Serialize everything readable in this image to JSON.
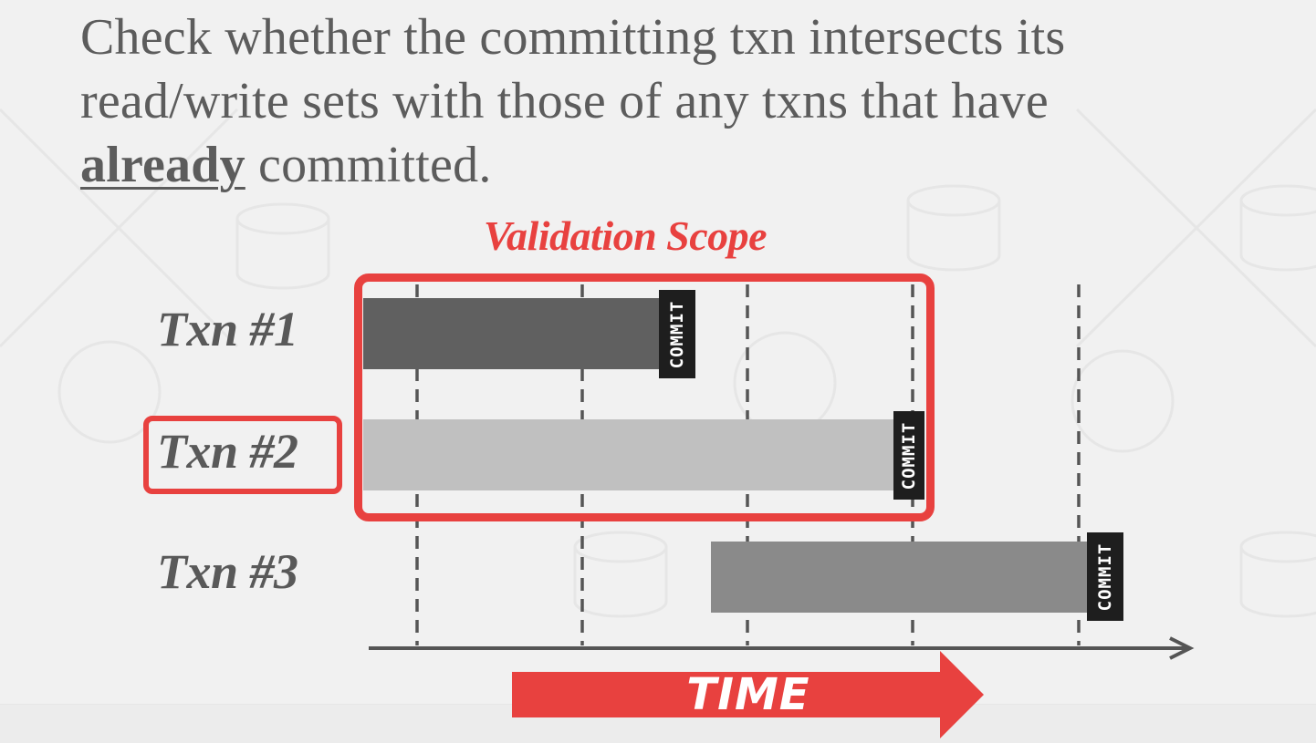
{
  "headline": {
    "line1": "Check whether the committing txn intersects its",
    "line2": "read/write sets with those of any txns that have",
    "emphasis": "already",
    "line3_rest": " committed."
  },
  "diagram": {
    "scope_label": "Validation Scope",
    "transactions": [
      {
        "label": "Txn #1",
        "commit_label": "COMMIT"
      },
      {
        "label": "Txn #2",
        "commit_label": "COMMIT",
        "highlighted": true
      },
      {
        "label": "Txn #3",
        "commit_label": "COMMIT"
      }
    ],
    "time_label": "TIME"
  },
  "colors": {
    "accent_red": "#e8413f",
    "txn1_bar": "#606060",
    "txn2_bar": "#c0c0c0",
    "txn3_bar": "#8a8a8a",
    "text_gray": "#5c5c5c"
  }
}
